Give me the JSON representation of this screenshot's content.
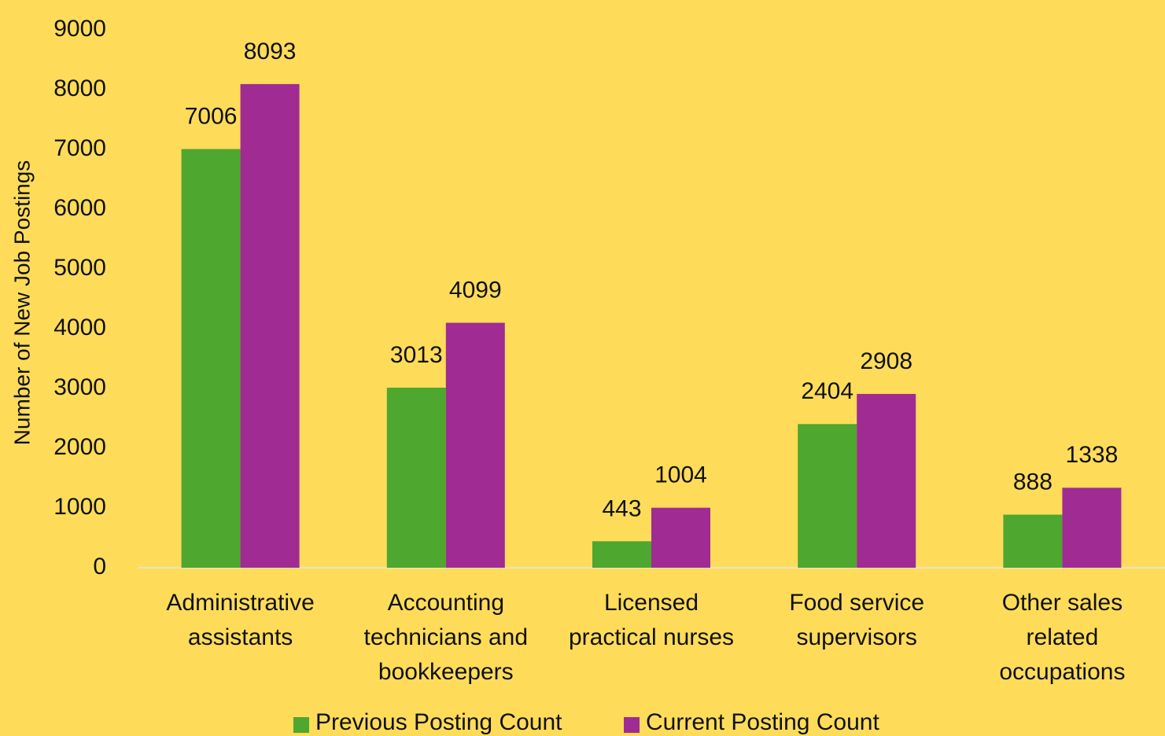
{
  "chart_data": {
    "type": "bar",
    "y_label": "Number of New Job Postings",
    "categories": [
      "Administrative assistants",
      "Accounting technicians and bookkeepers",
      "Licensed practical nurses",
      "Food service supervisors",
      "Other sales related occupations"
    ],
    "series": [
      {
        "name": "Previous Posting Count",
        "color": "#4ea72e",
        "values": [
          7006,
          3013,
          443,
          2404,
          888
        ]
      },
      {
        "name": "Current Posting Count",
        "color": "#a02b93",
        "values": [
          8093,
          4099,
          1004,
          2908,
          1338
        ]
      }
    ],
    "ylim": [
      0,
      9000
    ],
    "yticks": [
      0,
      1000,
      2000,
      3000,
      4000,
      5000,
      6000,
      7000,
      8000,
      9000
    ],
    "grid": false,
    "legend": "bottom"
  }
}
